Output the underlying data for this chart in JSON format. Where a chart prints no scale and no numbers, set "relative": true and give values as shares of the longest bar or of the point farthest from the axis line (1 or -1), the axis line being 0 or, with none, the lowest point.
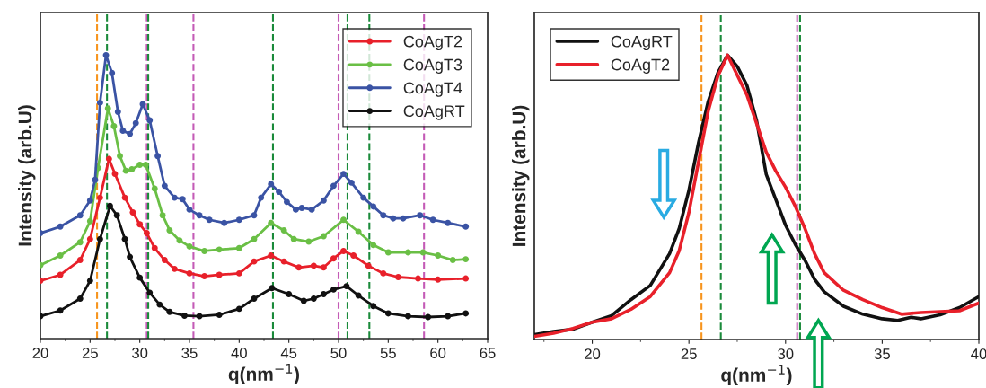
{
  "chart_data": [
    {
      "type": "line",
      "relative": true,
      "xlabel": "q(nm$^{−1}$)",
      "ylabel": "Intensity (arb.U)",
      "xlim": [
        20,
        65
      ],
      "xticks": [
        20,
        25,
        30,
        35,
        40,
        45,
        50,
        55,
        60,
        65
      ],
      "legend": "top right",
      "marker": "circle",
      "line_style": "solid",
      "grid": false,
      "series": [
        {
          "name": "CoAgT2",
          "color": "#e8202a",
          "x": [
            20,
            22,
            24,
            25,
            26,
            26.9,
            27.5,
            28.5,
            29.3,
            30,
            30.7,
            31.5,
            32.5,
            33.5,
            35,
            36.5,
            38,
            40,
            41.5,
            43.2,
            44.5,
            46,
            47.5,
            48.5,
            49.5,
            50.5,
            51.5,
            53,
            54.5,
            56,
            58,
            60,
            62.8
          ],
          "values": [
            0.204,
            0.225,
            0.277,
            0.351,
            0.497,
            0.634,
            0.581,
            0.497,
            0.445,
            0.403,
            0.372,
            0.319,
            0.277,
            0.246,
            0.23,
            0.22,
            0.225,
            0.23,
            0.272,
            0.293,
            0.272,
            0.251,
            0.257,
            0.251,
            0.283,
            0.309,
            0.293,
            0.257,
            0.23,
            0.217,
            0.212,
            0.208,
            0.212
          ]
        },
        {
          "name": "CoAgT3",
          "color": "#6abf45",
          "x": [
            20,
            22,
            24,
            25,
            25.8,
            26.8,
            27.4,
            28,
            28.6,
            29.2,
            30,
            30.6,
            31.5,
            32.3,
            33,
            34,
            35,
            36.5,
            38,
            40,
            41.5,
            43.2,
            44.5,
            45.5,
            47,
            48.5,
            50.5,
            52,
            53.5,
            55,
            57,
            58.5,
            60,
            61.5,
            62.8
          ],
          "values": [
            0.259,
            0.293,
            0.34,
            0.414,
            0.602,
            0.812,
            0.749,
            0.644,
            0.592,
            0.597,
            0.613,
            0.613,
            0.529,
            0.435,
            0.382,
            0.346,
            0.325,
            0.309,
            0.314,
            0.319,
            0.351,
            0.408,
            0.382,
            0.351,
            0.342,
            0.361,
            0.419,
            0.377,
            0.33,
            0.304,
            0.304,
            0.304,
            0.293,
            0.277,
            0.28
          ]
        },
        {
          "name": "CoAgT4",
          "color": "#3a53a4",
          "x": [
            20,
            22,
            24,
            25,
            25.5,
            26,
            26.6,
            27.2,
            27.8,
            28.3,
            29,
            29.6,
            30.3,
            31,
            31.8,
            32.5,
            33.5,
            34.3,
            35,
            36,
            37,
            38.5,
            40,
            41.5,
            42.2,
            43.2,
            44,
            44.8,
            45.7,
            46.3,
            47.3,
            48.5,
            49.5,
            50.5,
            51.3,
            52.5,
            53.5,
            54.5,
            55.5,
            56.5,
            58.2,
            59.5,
            61,
            62.8
          ],
          "values": [
            0.372,
            0.395,
            0.435,
            0.487,
            0.56,
            0.832,
            1.0,
            0.937,
            0.8,
            0.733,
            0.722,
            0.76,
            0.827,
            0.77,
            0.644,
            0.539,
            0.497,
            0.492,
            0.455,
            0.435,
            0.419,
            0.408,
            0.419,
            0.435,
            0.497,
            0.545,
            0.518,
            0.482,
            0.455,
            0.461,
            0.455,
            0.487,
            0.539,
            0.581,
            0.55,
            0.497,
            0.466,
            0.435,
            0.424,
            0.424,
            0.435,
            0.419,
            0.408,
            0.395
          ]
        },
        {
          "name": "CoAgRT",
          "color": "#111111",
          "x": [
            20,
            22,
            24,
            25,
            26,
            27,
            27.7,
            28.5,
            29,
            30,
            31,
            32,
            33,
            34.5,
            36,
            38,
            40,
            41.5,
            43.3,
            45,
            46.5,
            47.5,
            48.5,
            49.5,
            50.8,
            52,
            53.5,
            55,
            57,
            59,
            61,
            62.8
          ],
          "values": [
            0.079,
            0.099,
            0.141,
            0.204,
            0.351,
            0.468,
            0.435,
            0.351,
            0.288,
            0.215,
            0.162,
            0.12,
            0.094,
            0.081,
            0.079,
            0.084,
            0.105,
            0.141,
            0.178,
            0.157,
            0.133,
            0.141,
            0.157,
            0.173,
            0.185,
            0.152,
            0.115,
            0.089,
            0.079,
            0.076,
            0.079,
            0.089
          ]
        }
      ],
      "ref_lines": [
        {
          "axis": "x",
          "value": 25.7,
          "color": "#f7941d",
          "line_style": "dashed"
        },
        {
          "axis": "x",
          "value": 26.7,
          "color": "#1a8a3a",
          "line_style": "dashed"
        },
        {
          "axis": "x",
          "value": 30.7,
          "color": "#c45bb6",
          "line_style": "dashed"
        },
        {
          "axis": "x",
          "value": 30.85,
          "color": "#1a8a3a",
          "line_style": "dashed"
        },
        {
          "axis": "x",
          "value": 35.4,
          "color": "#c45bb6",
          "line_style": "dashed"
        },
        {
          "axis": "x",
          "value": 43.4,
          "color": "#1a8a3a",
          "line_style": "dashed"
        },
        {
          "axis": "x",
          "value": 50.0,
          "color": "#c45bb6",
          "line_style": "dashed"
        },
        {
          "axis": "x",
          "value": 50.9,
          "color": "#1a8a3a",
          "line_style": "dashed"
        },
        {
          "axis": "x",
          "value": 53.1,
          "color": "#1a8a3a",
          "line_style": "dashed"
        },
        {
          "axis": "x",
          "value": 58.6,
          "color": "#c45bb6",
          "line_style": "dashed"
        }
      ]
    },
    {
      "type": "line",
      "relative": true,
      "xlabel": "q(nm$^{−1}$)",
      "ylabel": "Intensity (arb.U)",
      "xlim": [
        17,
        40
      ],
      "xticks": [
        20,
        25,
        30,
        35,
        40
      ],
      "legend": "top left",
      "line_style": "solid",
      "grid": false,
      "series": [
        {
          "name": "CoAgRT",
          "color": "#111111",
          "x": [
            17,
            18,
            19,
            20,
            21,
            22,
            23,
            24,
            24.5,
            25,
            25.5,
            26,
            26.5,
            27,
            27.5,
            28,
            28.5,
            29,
            29.5,
            30,
            30.5,
            31,
            31.5,
            32,
            33,
            34,
            35,
            35.8,
            36.5,
            37,
            38,
            39,
            40
          ],
          "values": [
            0.017,
            0.028,
            0.036,
            0.061,
            0.084,
            0.14,
            0.19,
            0.302,
            0.391,
            0.525,
            0.693,
            0.838,
            0.939,
            1.0,
            0.961,
            0.894,
            0.771,
            0.581,
            0.492,
            0.402,
            0.335,
            0.279,
            0.212,
            0.168,
            0.117,
            0.089,
            0.073,
            0.067,
            0.078,
            0.073,
            0.087,
            0.112,
            0.151
          ]
        },
        {
          "name": "CoAgT2",
          "color": "#e8202a",
          "x": [
            17,
            18,
            19,
            20,
            21,
            22,
            23,
            24,
            24.5,
            25,
            25.5,
            26,
            26.5,
            27,
            27.4,
            28,
            28.5,
            29,
            29.5,
            30,
            30.5,
            31,
            31.5,
            32,
            33,
            34,
            35,
            36,
            37,
            38,
            39,
            40
          ],
          "values": [
            0.011,
            0.022,
            0.039,
            0.061,
            0.073,
            0.106,
            0.151,
            0.235,
            0.313,
            0.447,
            0.626,
            0.804,
            0.927,
            1.0,
            0.944,
            0.86,
            0.76,
            0.659,
            0.592,
            0.536,
            0.469,
            0.391,
            0.302,
            0.235,
            0.173,
            0.14,
            0.112,
            0.089,
            0.095,
            0.098,
            0.101,
            0.128
          ]
        }
      ],
      "ref_lines": [
        {
          "axis": "x",
          "value": 25.65,
          "color": "#f7941d",
          "line_style": "dashed"
        },
        {
          "axis": "x",
          "value": 26.65,
          "color": "#1a8a3a",
          "line_style": "dashed"
        },
        {
          "axis": "x",
          "value": 30.6,
          "color": "#c45bb6",
          "line_style": "dashed"
        },
        {
          "axis": "x",
          "value": 30.75,
          "color": "#1a8a3a",
          "line_style": "dashed"
        }
      ]
    }
  ]
}
